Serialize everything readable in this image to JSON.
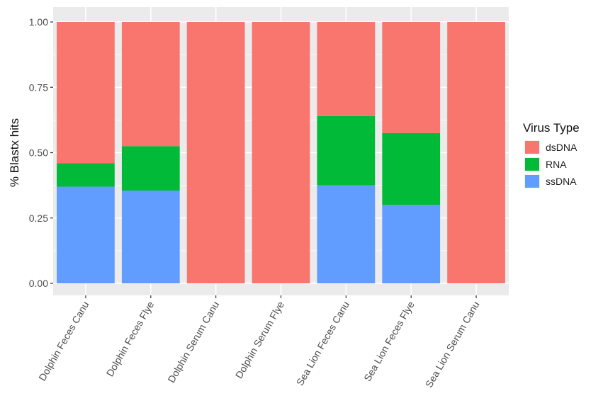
{
  "chart_data": {
    "type": "bar",
    "stacked": true,
    "categories": [
      "Dolphin Feces Canu",
      "Dolphin Feces Flye",
      "Dolphin Serum Canu",
      "Dolphin Serum Flye",
      "Sea Lion Feces Canu",
      "Sea Lion Feces Flye",
      "Sea Lion Serum Canu"
    ],
    "series": [
      {
        "name": "ssDNA",
        "color": "#619CFF",
        "values": [
          0.37,
          0.355,
          0.0,
          0.0,
          0.375,
          0.3,
          0.0
        ]
      },
      {
        "name": "RNA",
        "color": "#00BA38",
        "values": [
          0.09,
          0.17,
          0.0,
          0.0,
          0.265,
          0.275,
          0.0
        ]
      },
      {
        "name": "dsDNA",
        "color": "#F8766D",
        "values": [
          0.54,
          0.475,
          1.0,
          1.0,
          0.36,
          0.425,
          1.0
        ]
      }
    ],
    "ylabel": "% Blastx hits",
    "xlabel": "",
    "ylim": [
      0,
      1
    ],
    "yticks": [
      "0.00",
      "0.25",
      "0.50",
      "0.75",
      "1.00"
    ],
    "legend": {
      "title": "Virus Type",
      "position": "right",
      "entries": [
        "dsDNA",
        "RNA",
        "ssDNA"
      ]
    },
    "panel_background": "#EBEBEB",
    "gridline_color": "#FFFFFF",
    "grid": true
  }
}
